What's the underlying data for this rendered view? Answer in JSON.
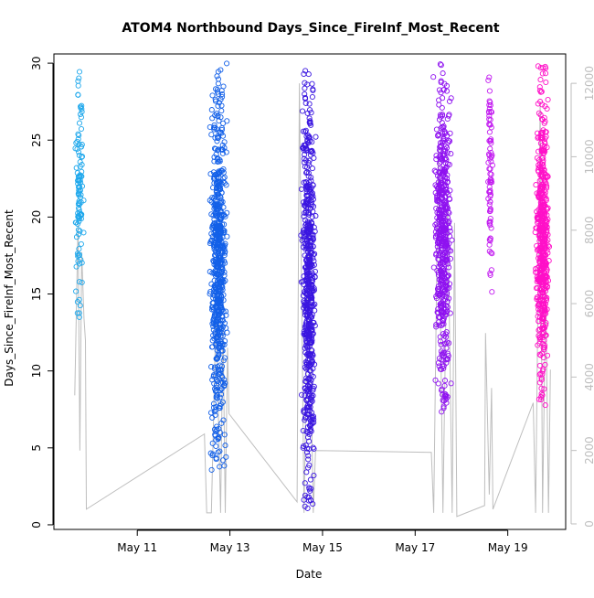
{
  "chart_data": {
    "type": "scatter",
    "title": "ATOM4 Northbound Days_Since_FireInf_Most_Recent",
    "xlabel": "Date",
    "ylabel": "Days_Since_FireInf_Most_Recent",
    "x_ticks": [
      "May 11",
      "May 13",
      "May 15",
      "May 17",
      "May 19"
    ],
    "x_tick_values": [
      11,
      13,
      15,
      17,
      19
    ],
    "xlim": [
      9.2,
      20.25
    ],
    "ylim": [
      -0.3,
      30.6
    ],
    "y_ticks": [
      0,
      5,
      10,
      15,
      20,
      25,
      30
    ],
    "y2_ticks": [
      0,
      2000,
      4000,
      6000,
      8000,
      10000,
      12000
    ],
    "y2lim": [
      -150,
      12800
    ],
    "secondary_axis_color": "#bebebe",
    "grid": false,
    "legend": "none",
    "point_style": "open-circle",
    "clusters": [
      {
        "x_center": 9.75,
        "x_width": 0.22,
        "y_range": [
          13.4,
          30
        ],
        "count": 110,
        "color": "#1fa8ec"
      },
      {
        "x_center": 12.75,
        "x_width": 0.45,
        "y_range": [
          3.5,
          30
        ],
        "count": 650,
        "color": "#1360e8"
      },
      {
        "x_center": 14.7,
        "x_width": 0.38,
        "y_range": [
          1,
          29.7
        ],
        "count": 600,
        "color": "#3a16e0"
      },
      {
        "x_center": 17.6,
        "x_width": 0.45,
        "y_range": [
          7.3,
          30
        ],
        "count": 520,
        "color": "#8f12f0"
      },
      {
        "x_center": 18.62,
        "x_width": 0.12,
        "y_range": [
          14.8,
          29.9
        ],
        "count": 80,
        "color": "#c21af0"
      },
      {
        "x_center": 19.75,
        "x_width": 0.35,
        "y_range": [
          7.4,
          29.9
        ],
        "count": 520,
        "color": "#ff10c8"
      }
    ],
    "line_series": {
      "name": "",
      "color": "#bebebe",
      "axis": "secondary",
      "points": [
        [
          9.65,
          3500
        ],
        [
          9.72,
          8200
        ],
        [
          9.76,
          2000
        ],
        [
          9.8,
          7400
        ],
        [
          9.85,
          5600
        ],
        [
          9.88,
          5000
        ],
        [
          9.9,
          400
        ],
        [
          12.45,
          2450
        ],
        [
          12.5,
          300
        ],
        [
          12.6,
          300
        ],
        [
          12.7,
          5800
        ],
        [
          12.8,
          300
        ],
        [
          12.85,
          5500
        ],
        [
          12.9,
          300
        ],
        [
          12.95,
          4800
        ],
        [
          12.98,
          3000
        ],
        [
          14.45,
          600
        ],
        [
          14.5,
          12000
        ],
        [
          14.6,
          300
        ],
        [
          14.7,
          8000
        ],
        [
          14.8,
          300
        ],
        [
          14.85,
          2000
        ],
        [
          17.35,
          1950
        ],
        [
          17.4,
          300
        ],
        [
          17.5,
          10300
        ],
        [
          17.6,
          300
        ],
        [
          17.7,
          9000
        ],
        [
          17.8,
          300
        ],
        [
          17.85,
          8200
        ],
        [
          17.9,
          200
        ],
        [
          18.5,
          500
        ],
        [
          18.52,
          5200
        ],
        [
          18.6,
          800
        ],
        [
          18.65,
          3700
        ],
        [
          18.68,
          400
        ],
        [
          19.55,
          3300
        ],
        [
          19.6,
          300
        ],
        [
          19.7,
          11500
        ],
        [
          19.75,
          300
        ],
        [
          19.82,
          6500
        ],
        [
          19.88,
          300
        ],
        [
          19.92,
          4200
        ]
      ]
    }
  }
}
